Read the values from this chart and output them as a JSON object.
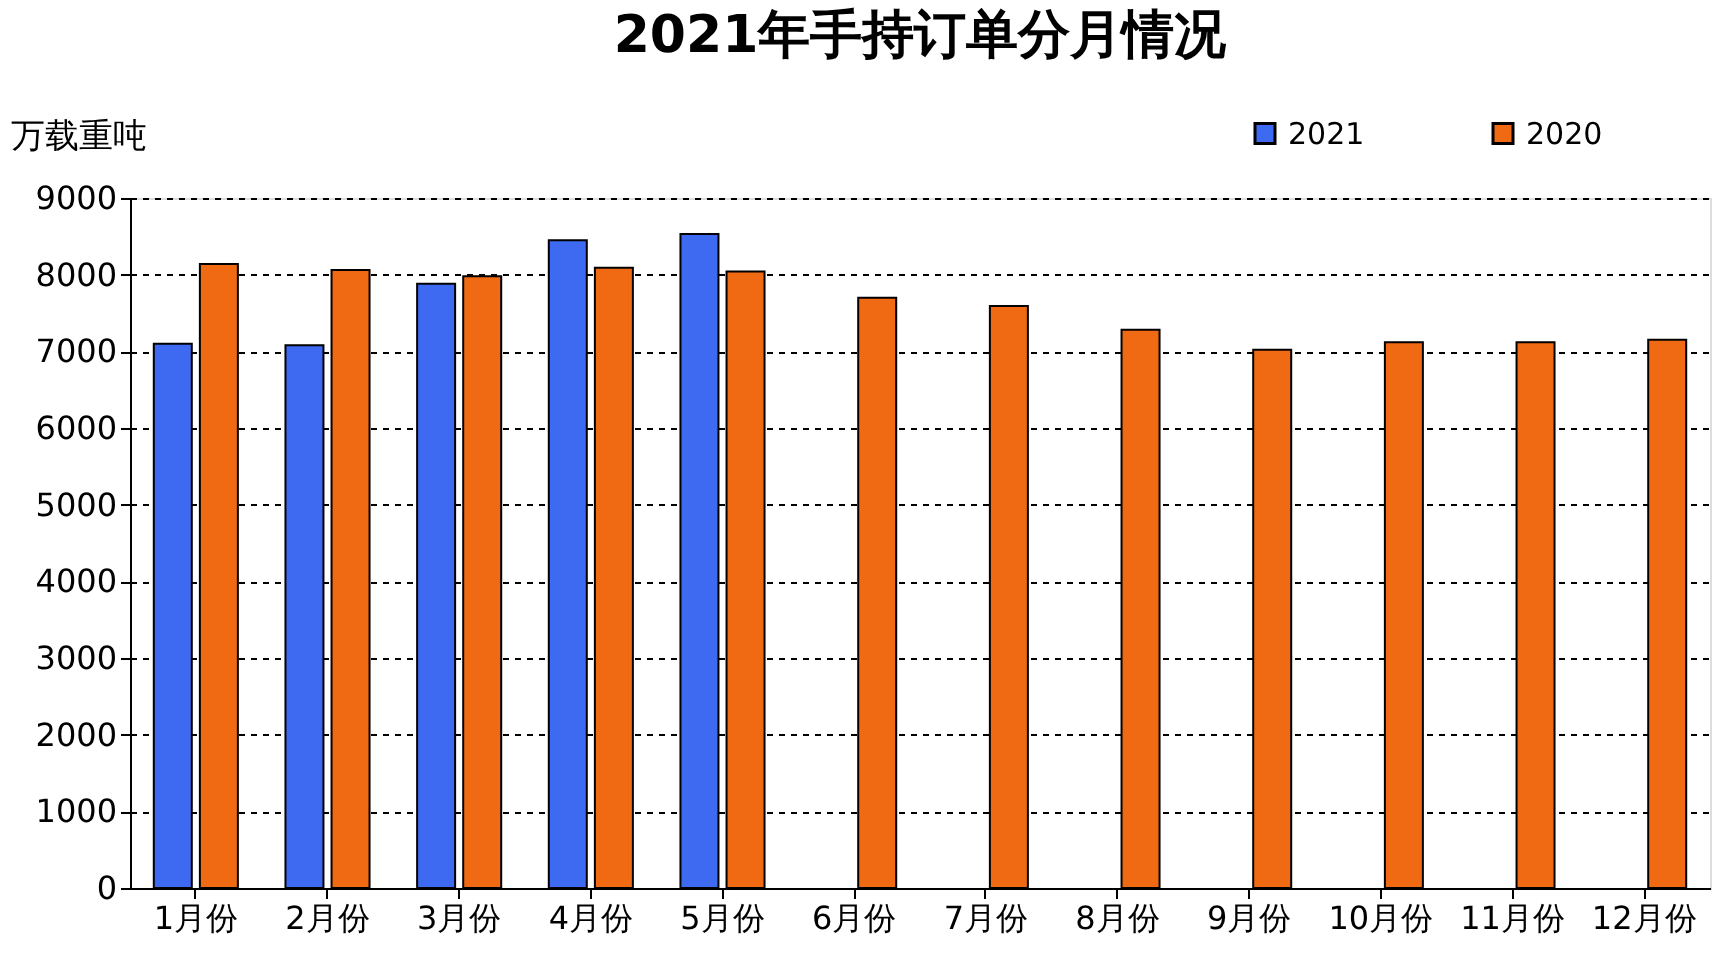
{
  "chart_data": {
    "type": "bar",
    "title": "2021年手持订单分月情况",
    "ylabel": "万载重吨",
    "categories": [
      "1月份",
      "2月份",
      "3月份",
      "4月份",
      "5月份",
      "6月份",
      "7月份",
      "8月份",
      "9月份",
      "10月份",
      "11月份",
      "12月份"
    ],
    "series": [
      {
        "name": "2021",
        "color": "#3d6af0",
        "values": [
          7100,
          7080,
          7880,
          8450,
          8530,
          null,
          null,
          null,
          null,
          null,
          null,
          null
        ]
      },
      {
        "name": "2020",
        "color": "#f06a14",
        "values": [
          8140,
          8060,
          7980,
          8090,
          8040,
          7700,
          7590,
          7280,
          7020,
          7120,
          7120,
          7150
        ]
      }
    ],
    "ylim": [
      0,
      9000
    ],
    "yticks": [
      0,
      1000,
      2000,
      3000,
      4000,
      5000,
      6000,
      7000,
      8000,
      9000
    ],
    "grid": "y",
    "legend": "top right"
  }
}
